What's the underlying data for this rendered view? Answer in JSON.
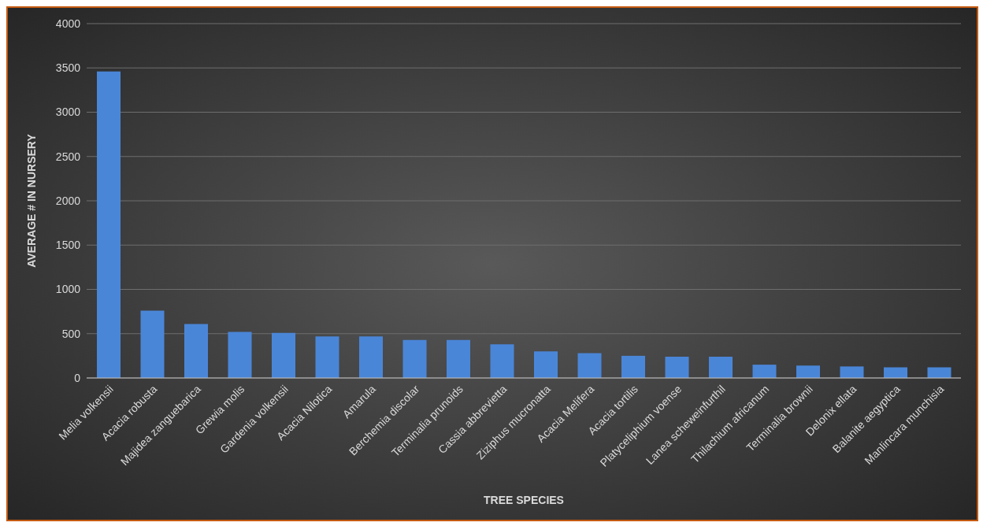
{
  "chart_data": {
    "type": "bar",
    "xlabel": "TREE SPECIES",
    "ylabel": "AVERAGE # IN NURSERY",
    "categories": [
      "Melia volkensii",
      "Acacia robusta",
      "Majidea zanguebarica",
      "Grewia molis",
      "Gardenia volkensii",
      "Acacia Nilotica",
      "Amarula",
      "Berchemia discolar",
      "Terminalia prunoids",
      "Cassia abbrevietta",
      "Ziziphus mucronatta",
      "Acacia Melifera",
      "Acacia tortilis",
      "Platyceliphium voense",
      "Lanea scheweinfurthil",
      "Thilachium africanum",
      "Terminalia brownii",
      "Delonix ellata",
      "Balanite aegyptica",
      "Manlincara munchisia"
    ],
    "values": [
      3460,
      760,
      610,
      520,
      510,
      470,
      470,
      430,
      430,
      380,
      300,
      280,
      250,
      240,
      240,
      150,
      140,
      130,
      120,
      120
    ],
    "color": "#4a86d8",
    "ylim": [
      0,
      4000
    ],
    "yticks": [
      0,
      500,
      1000,
      1500,
      2000,
      2500,
      3000,
      3500,
      4000
    ],
    "grid": "y"
  }
}
